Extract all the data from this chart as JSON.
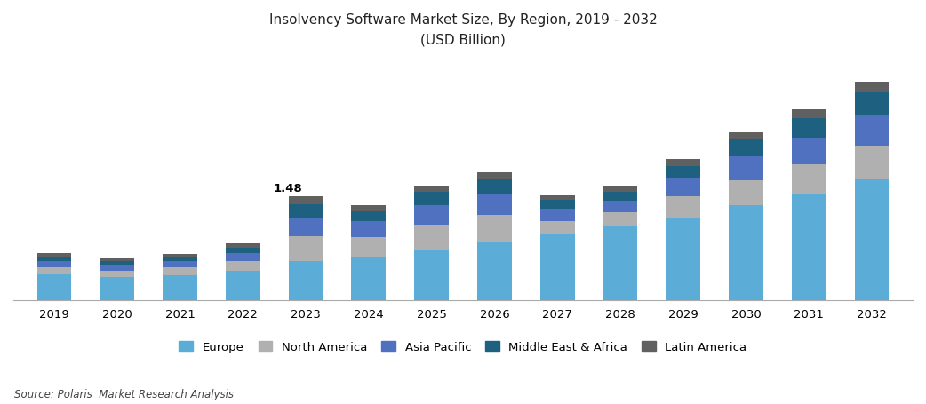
{
  "title_line1": "Insolvency Software Market Size, By Region, 2019 - 2032",
  "title_line2": "(USD Billion)",
  "source": "Source: Polaris  Market Research Analysis",
  "years": [
    2019,
    2020,
    2021,
    2022,
    2023,
    2024,
    2025,
    2026,
    2027,
    2028,
    2029,
    2030,
    2031,
    2032
  ],
  "segments": [
    "Europe",
    "North America",
    "Asia Pacific",
    "Middle East & Africa",
    "Latin America"
  ],
  "colors": [
    "#5BACD6",
    "#B0B0B0",
    "#5070C0",
    "#1E6080",
    "#606060"
  ],
  "annotation_year_idx": 4,
  "annotation_text": "1.48",
  "data": {
    "Europe": [
      0.36,
      0.32,
      0.35,
      0.42,
      0.55,
      0.6,
      0.72,
      0.82,
      0.95,
      1.05,
      1.18,
      1.35,
      1.52,
      1.72
    ],
    "North America": [
      0.11,
      0.1,
      0.11,
      0.14,
      0.36,
      0.3,
      0.36,
      0.4,
      0.18,
      0.2,
      0.3,
      0.36,
      0.42,
      0.48
    ],
    "Asia Pacific": [
      0.09,
      0.08,
      0.09,
      0.11,
      0.27,
      0.22,
      0.28,
      0.3,
      0.18,
      0.17,
      0.26,
      0.34,
      0.38,
      0.44
    ],
    "Middle East & Africa": [
      0.06,
      0.05,
      0.06,
      0.08,
      0.19,
      0.14,
      0.18,
      0.2,
      0.12,
      0.13,
      0.18,
      0.24,
      0.28,
      0.33
    ],
    "Latin America": [
      0.05,
      0.04,
      0.05,
      0.06,
      0.11,
      0.09,
      0.1,
      0.11,
      0.07,
      0.07,
      0.09,
      0.11,
      0.13,
      0.15
    ]
  },
  "ylim": [
    0,
    3.5
  ],
  "figsize": [
    10.42,
    4.56
  ],
  "dpi": 100,
  "bar_width": 0.55
}
